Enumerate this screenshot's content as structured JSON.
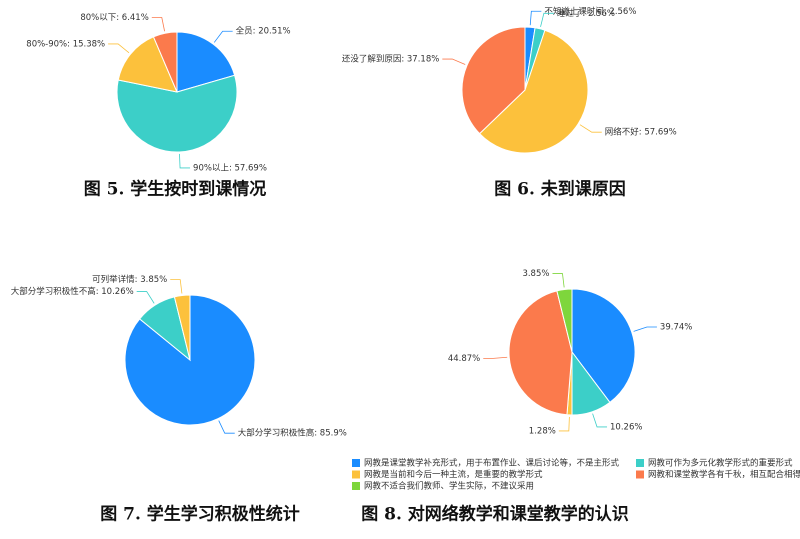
{
  "chart_data": [
    {
      "type": "pie",
      "title": "图 5. 学生按时到课情况",
      "values": [
        20.51,
        57.69,
        15.38,
        6.41
      ],
      "value_labels": [
        "全员: 20.51%",
        "90%以上: 57.69%",
        "80%-90%: 15.38%",
        "80%以下: 6.41%"
      ],
      "colors": [
        "#1a8cff",
        "#3ccfc8",
        "#fcc13c",
        "#fb7a4c"
      ]
    },
    {
      "type": "pie",
      "title": "图 6. 未到课原因",
      "values": [
        2.56,
        2.56,
        57.69,
        37.18
      ],
      "value_labels": [
        "不知道上课时间: 2.56%",
        "睡过了: 2.56%",
        "网络不好: 57.69%",
        "还没了解到原因: 37.18%"
      ],
      "colors": [
        "#1a8cff",
        "#3ccfc8",
        "#fcc13c",
        "#fb7a4c"
      ]
    },
    {
      "type": "pie",
      "title": "图 7. 学生学习积极性统计",
      "values": [
        85.9,
        10.26,
        3.85
      ],
      "value_labels": [
        "大部分学习积极性高: 85.9%",
        "大部分学习积极性不高: 10.26%",
        "可列举详情: 3.85%"
      ],
      "colors": [
        "#1a8cff",
        "#3ccfc8",
        "#fcc13c"
      ]
    },
    {
      "type": "pie",
      "title": "图 8. 对网络教学和课堂教学的认识",
      "categories": [
        "网教是课堂教学补充形式，用于布置作业、课后讨论等，不是主形式",
        "网教可作为多元化教学形式的重要形式",
        "网教是当前和今后一种主流，是重要的教学形式",
        "网教和课堂教学各有千秋，相互配合相得益彰",
        "网教不适合我们教师、学生实际，不建议采用"
      ],
      "values": [
        39.74,
        10.26,
        1.28,
        44.87,
        3.85
      ],
      "value_labels": [
        "39.74%",
        "10.26%",
        "1.28%",
        "44.87%",
        "3.85%"
      ],
      "colors": [
        "#1a8cff",
        "#3ccfc8",
        "#fcc13c",
        "#fb7a4c",
        "#7ed63c"
      ]
    }
  ]
}
